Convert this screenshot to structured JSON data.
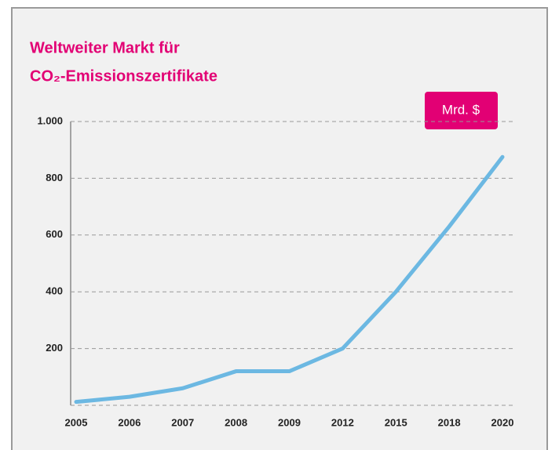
{
  "chart_data": {
    "type": "line",
    "title_lines": [
      "Weltweiter Markt für",
      "CO₂-Emissionszertifikate"
    ],
    "unit_label": "Mrd. $",
    "categories": [
      "2005",
      "2006",
      "2007",
      "2008",
      "2009",
      "2012",
      "2015",
      "2018",
      "2020"
    ],
    "values": [
      12,
      30,
      60,
      120,
      120,
      200,
      400,
      630,
      875
    ],
    "color": "#6cb8e2",
    "ylim": [
      0,
      1000
    ],
    "yticks": [
      200,
      400,
      600,
      800,
      {
        "value": 1000,
        "label": "1.000"
      }
    ],
    "grid": true
  }
}
